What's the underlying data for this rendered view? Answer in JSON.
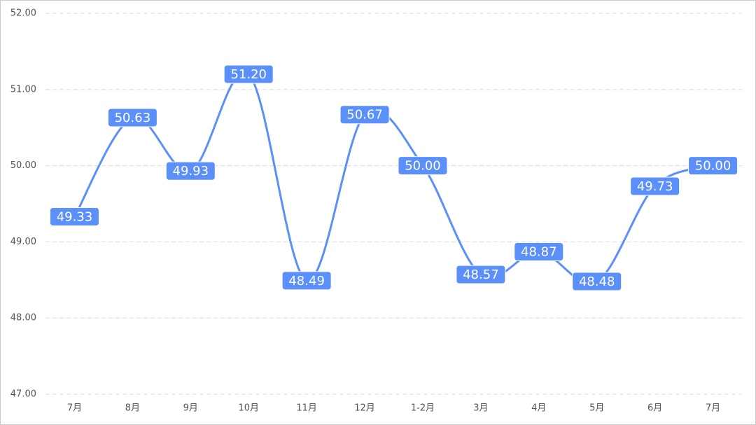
{
  "chart_data": {
    "type": "line",
    "categories": [
      "7月",
      "8月",
      "9月",
      "10月",
      "11月",
      "12月",
      "1-2月",
      "3月",
      "4月",
      "5月",
      "6月",
      "7月"
    ],
    "values": [
      49.33,
      50.63,
      49.93,
      51.2,
      48.49,
      50.67,
      50.0,
      48.57,
      48.87,
      48.48,
      49.73,
      50.0
    ],
    "value_labels": [
      "49.33",
      "50.63",
      "49.93",
      "51.20",
      "48.49",
      "50.67",
      "50.00",
      "48.57",
      "48.87",
      "48.48",
      "49.73",
      "50.00"
    ],
    "color": "#5b8ff9",
    "ylim": [
      47,
      52
    ],
    "yticks": [
      {
        "value": 47,
        "label": "47.00"
      },
      {
        "value": 48,
        "label": "48.00"
      },
      {
        "value": 49,
        "label": "49.00"
      },
      {
        "value": 50,
        "label": "50.00"
      },
      {
        "value": 51,
        "label": "51.00"
      },
      {
        "value": 52,
        "label": "52.00"
      }
    ],
    "grid": true
  }
}
